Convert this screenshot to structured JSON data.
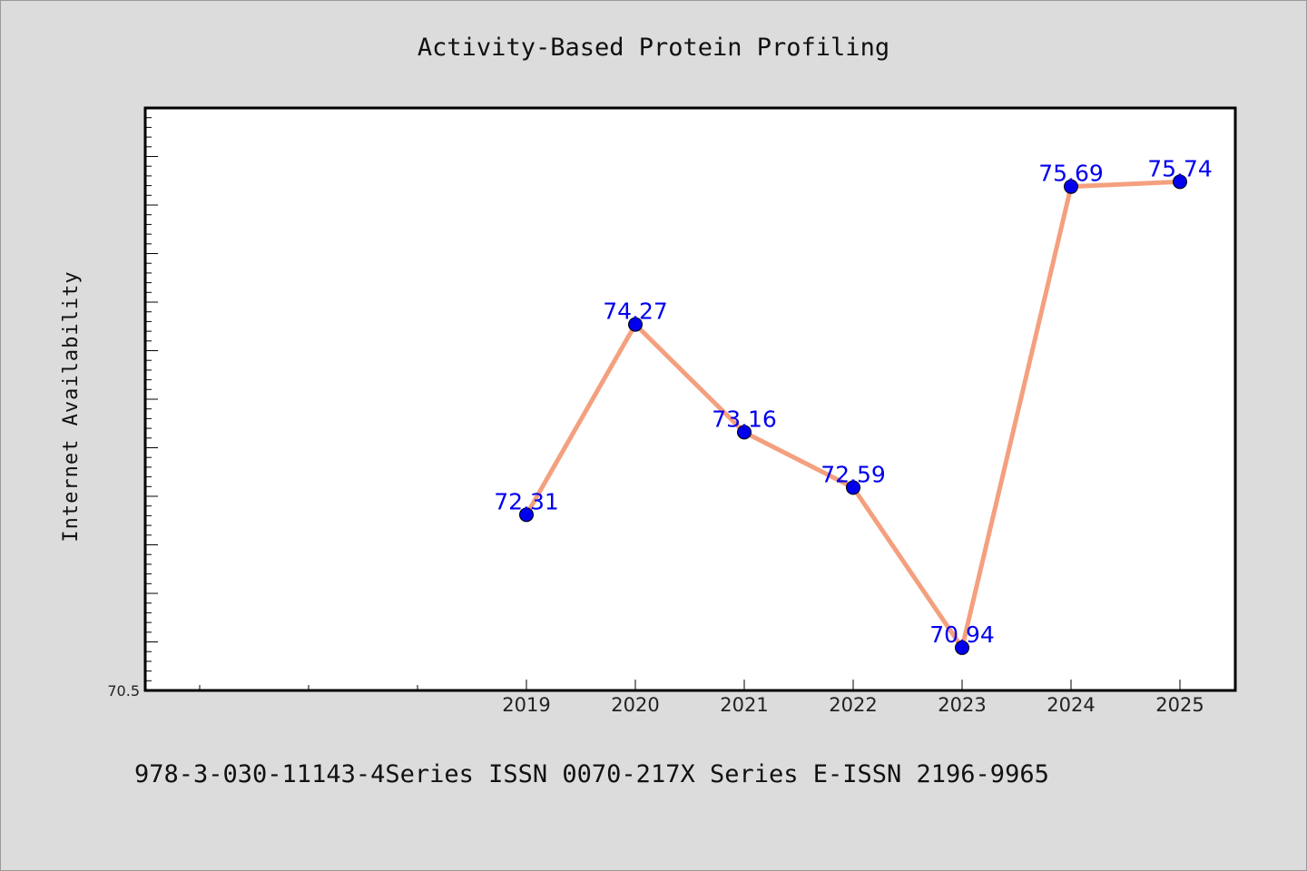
{
  "chart_data": {
    "type": "line",
    "title": "Activity-Based Protein Profiling",
    "xlabel": "",
    "ylabel": "Internet Availability",
    "x_categories": [
      "",
      "",
      "",
      "2019",
      "2020",
      "2021",
      "2022",
      "2023",
      "2024",
      "2025"
    ],
    "series": [
      {
        "x": [
          "2019",
          "2020",
          "2021",
          "2022",
          "2023",
          "2024",
          "2025"
        ],
        "values": [
          72.31,
          74.27,
          73.16,
          72.59,
          70.94,
          75.69,
          75.74
        ],
        "labels": [
          "72.31",
          "74.27",
          "73.16",
          "72.59",
          "70.94",
          "75.69",
          "75.74"
        ]
      }
    ],
    "ylim": [
      70.5,
      76.5
    ],
    "y_tick_labels": [
      "70.5"
    ],
    "grid": false,
    "colors": {
      "line": "#f4a07e",
      "marker": "#0000ee",
      "label": "#0000ee",
      "background": "#dcdcdc",
      "plot_bg": "#ffffff"
    }
  },
  "footer_text": "978-3-030-11143-4Series ISSN 0070-217X Series E-ISSN 2196-9965"
}
